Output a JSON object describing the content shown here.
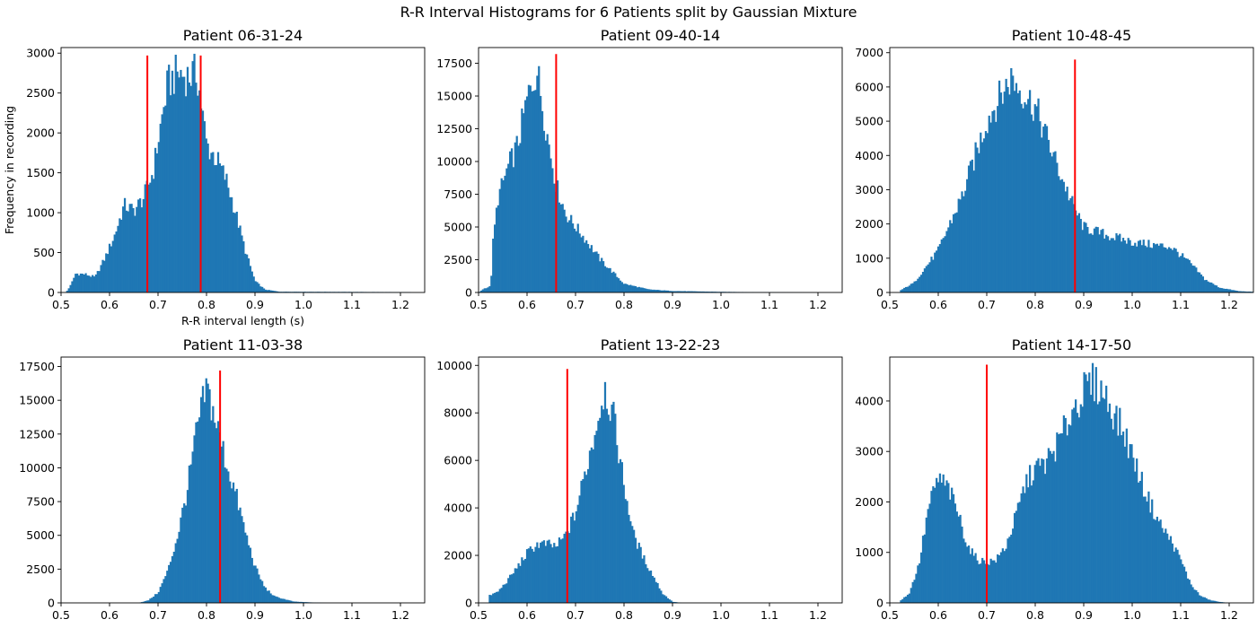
{
  "figure": {
    "title": "R-R Interval Histograms for 6 Patients split by Gaussian Mixture"
  },
  "colors": {
    "bars": "#1f77b4",
    "split_line": "#ff0000"
  },
  "chart_data": [
    {
      "type": "bar",
      "title": "Patient 06-31-24",
      "xlabel": "R-R interval length (s)",
      "ylabel": "Frequency in recording",
      "xlim": [
        0.5,
        1.25
      ],
      "ylim": [
        0,
        3070
      ],
      "xticks": [
        0.5,
        0.6,
        0.7,
        0.8,
        0.9,
        1.0,
        1.1,
        1.2
      ],
      "xtick_labels": [
        "0.5",
        "0.6",
        "0.7",
        "0.8",
        "0.9",
        "1.0",
        "1.1",
        "1.2"
      ],
      "yticks": [
        0,
        500,
        1000,
        1500,
        2000,
        2500,
        3000
      ],
      "split_lines": [
        {
          "x": 0.678,
          "height": 2970
        },
        {
          "x": 0.788,
          "height": 2970
        }
      ],
      "profile": [
        [
          0.51,
          0
        ],
        [
          0.52,
          100
        ],
        [
          0.53,
          250
        ],
        [
          0.55,
          240
        ],
        [
          0.57,
          200
        ],
        [
          0.59,
          450
        ],
        [
          0.61,
          750
        ],
        [
          0.63,
          1150
        ],
        [
          0.65,
          1080
        ],
        [
          0.67,
          1250
        ],
        [
          0.69,
          1600
        ],
        [
          0.7,
          2000
        ],
        [
          0.72,
          2750
        ],
        [
          0.74,
          2900
        ],
        [
          0.76,
          2850
        ],
        [
          0.78,
          2900
        ],
        [
          0.8,
          1950
        ],
        [
          0.82,
          1760
        ],
        [
          0.84,
          1500
        ],
        [
          0.86,
          1050
        ],
        [
          0.88,
          550
        ],
        [
          0.9,
          150
        ],
        [
          0.92,
          40
        ],
        [
          0.95,
          10
        ],
        [
          1.22,
          5
        ]
      ]
    },
    {
      "type": "bar",
      "title": "Patient 09-40-14",
      "xlim": [
        0.5,
        1.25
      ],
      "ylim": [
        0,
        18700
      ],
      "xticks": [
        0.5,
        0.6,
        0.7,
        0.8,
        0.9,
        1.0,
        1.1,
        1.2
      ],
      "xtick_labels": [
        "0.5",
        "0.6",
        "0.7",
        "0.8",
        "0.9",
        "1.0",
        "1.1",
        "1.2"
      ],
      "yticks": [
        0,
        2500,
        5000,
        7500,
        10000,
        12500,
        15000,
        17500
      ],
      "split_lines": [
        {
          "x": 0.66,
          "height": 18200
        }
      ],
      "profile": [
        [
          0.5,
          0
        ],
        [
          0.51,
          300
        ],
        [
          0.525,
          500
        ],
        [
          0.53,
          4200
        ],
        [
          0.54,
          7600
        ],
        [
          0.56,
          10000
        ],
        [
          0.58,
          11800
        ],
        [
          0.6,
          15500
        ],
        [
          0.62,
          18000
        ],
        [
          0.64,
          13000
        ],
        [
          0.66,
          8600
        ],
        [
          0.68,
          6300
        ],
        [
          0.7,
          5300
        ],
        [
          0.72,
          4300
        ],
        [
          0.75,
          2700
        ],
        [
          0.78,
          1500
        ],
        [
          0.8,
          700
        ],
        [
          0.85,
          250
        ],
        [
          0.9,
          120
        ],
        [
          1.0,
          50
        ],
        [
          1.2,
          0
        ]
      ]
    },
    {
      "type": "bar",
      "title": "Patient 10-48-45",
      "xlim": [
        0.5,
        1.25
      ],
      "ylim": [
        0,
        7150
      ],
      "xticks": [
        0.5,
        0.6,
        0.7,
        0.8,
        0.9,
        1.0,
        1.1,
        1.2
      ],
      "xtick_labels": [
        "0.5",
        "0.6",
        "0.7",
        "0.8",
        "0.9",
        "1.0",
        "1.1",
        "1.2"
      ],
      "yticks": [
        0,
        1000,
        2000,
        3000,
        4000,
        5000,
        6000,
        7000
      ],
      "split_lines": [
        {
          "x": 0.882,
          "height": 6800
        }
      ],
      "profile": [
        [
          0.52,
          50
        ],
        [
          0.55,
          300
        ],
        [
          0.6,
          1300
        ],
        [
          0.65,
          3000
        ],
        [
          0.7,
          5300
        ],
        [
          0.75,
          6600
        ],
        [
          0.8,
          5700
        ],
        [
          0.85,
          3700
        ],
        [
          0.88,
          2600
        ],
        [
          0.9,
          2000
        ],
        [
          0.95,
          1750
        ],
        [
          1.0,
          1550
        ],
        [
          1.05,
          1450
        ],
        [
          1.08,
          1400
        ],
        [
          1.12,
          900
        ],
        [
          1.15,
          400
        ],
        [
          1.18,
          150
        ],
        [
          1.22,
          40
        ],
        [
          1.25,
          20
        ]
      ]
    },
    {
      "type": "bar",
      "title": "Patient 11-03-38",
      "xlim": [
        0.5,
        1.25
      ],
      "ylim": [
        0,
        18200
      ],
      "xticks": [
        0.5,
        0.6,
        0.7,
        0.8,
        0.9,
        1.0,
        1.1,
        1.2
      ],
      "xtick_labels": [
        "0.5",
        "0.6",
        "0.7",
        "0.8",
        "0.9",
        "1.0",
        "1.1",
        "1.2"
      ],
      "yticks": [
        0,
        2500,
        5000,
        7500,
        10000,
        12500,
        15000,
        17500
      ],
      "split_lines": [
        {
          "x": 0.828,
          "height": 17200
        }
      ],
      "profile": [
        [
          0.66,
          0
        ],
        [
          0.68,
          200
        ],
        [
          0.7,
          800
        ],
        [
          0.72,
          2500
        ],
        [
          0.74,
          5200
        ],
        [
          0.76,
          8800
        ],
        [
          0.78,
          13500
        ],
        [
          0.8,
          16800
        ],
        [
          0.82,
          14000
        ],
        [
          0.84,
          11000
        ],
        [
          0.86,
          8500
        ],
        [
          0.88,
          5500
        ],
        [
          0.9,
          2800
        ],
        [
          0.92,
          1200
        ],
        [
          0.94,
          500
        ],
        [
          0.98,
          100
        ],
        [
          1.02,
          30
        ],
        [
          1.05,
          0
        ]
      ]
    },
    {
      "type": "bar",
      "title": "Patient 13-22-23",
      "xlim": [
        0.5,
        1.25
      ],
      "ylim": [
        0,
        10350
      ],
      "xticks": [
        0.5,
        0.6,
        0.7,
        0.8,
        0.9,
        1.0,
        1.1,
        1.2
      ],
      "xtick_labels": [
        "0.5",
        "0.6",
        "0.7",
        "0.8",
        "0.9",
        "1.0",
        "1.1",
        "1.2"
      ],
      "yticks": [
        0,
        2000,
        4000,
        6000,
        8000,
        10000
      ],
      "split_lines": [
        {
          "x": 0.683,
          "height": 9850
        }
      ],
      "profile": [
        [
          0.52,
          300
        ],
        [
          0.54,
          500
        ],
        [
          0.56,
          1000
        ],
        [
          0.58,
          1600
        ],
        [
          0.6,
          2200
        ],
        [
          0.62,
          2600
        ],
        [
          0.64,
          2600
        ],
        [
          0.66,
          2500
        ],
        [
          0.68,
          3000
        ],
        [
          0.7,
          4000
        ],
        [
          0.72,
          5800
        ],
        [
          0.74,
          7600
        ],
        [
          0.76,
          9600
        ],
        [
          0.78,
          8000
        ],
        [
          0.8,
          5200
        ],
        [
          0.82,
          3000
        ],
        [
          0.84,
          2000
        ],
        [
          0.86,
          1200
        ],
        [
          0.88,
          400
        ],
        [
          0.9,
          50
        ],
        [
          0.92,
          0
        ]
      ]
    },
    {
      "type": "bar",
      "title": "Patient 14-17-50",
      "xlim": [
        0.5,
        1.25
      ],
      "ylim": [
        0,
        4870
      ],
      "xticks": [
        0.5,
        0.6,
        0.7,
        0.8,
        0.9,
        1.0,
        1.1,
        1.2
      ],
      "xtick_labels": [
        "0.5",
        "0.6",
        "0.7",
        "0.8",
        "0.9",
        "1.0",
        "1.1",
        "1.2"
      ],
      "yticks": [
        0,
        1000,
        2000,
        3000,
        4000
      ],
      "split_lines": [
        {
          "x": 0.7,
          "height": 4720
        }
      ],
      "profile": [
        [
          0.52,
          30
        ],
        [
          0.54,
          200
        ],
        [
          0.56,
          800
        ],
        [
          0.58,
          2000
        ],
        [
          0.6,
          2600
        ],
        [
          0.62,
          2400
        ],
        [
          0.64,
          1900
        ],
        [
          0.66,
          1200
        ],
        [
          0.68,
          900
        ],
        [
          0.7,
          850
        ],
        [
          0.72,
          900
        ],
        [
          0.74,
          1200
        ],
        [
          0.76,
          1800
        ],
        [
          0.78,
          2500
        ],
        [
          0.8,
          2800
        ],
        [
          0.82,
          2900
        ],
        [
          0.84,
          3200
        ],
        [
          0.86,
          3600
        ],
        [
          0.88,
          4100
        ],
        [
          0.9,
          4400
        ],
        [
          0.92,
          4600
        ],
        [
          0.94,
          4400
        ],
        [
          0.96,
          4000
        ],
        [
          0.98,
          3600
        ],
        [
          1.0,
          3100
        ],
        [
          1.02,
          2500
        ],
        [
          1.04,
          2000
        ],
        [
          1.06,
          1600
        ],
        [
          1.08,
          1300
        ],
        [
          1.1,
          900
        ],
        [
          1.12,
          400
        ],
        [
          1.14,
          150
        ],
        [
          1.16,
          60
        ],
        [
          1.18,
          20
        ],
        [
          1.2,
          0
        ]
      ]
    }
  ]
}
